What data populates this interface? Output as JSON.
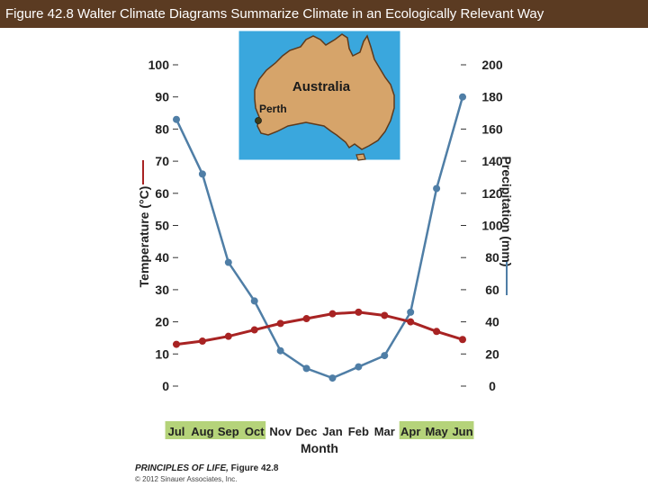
{
  "header": {
    "title": "Figure 42.8  Walter Climate Diagrams Summarize Climate in an Ecologically Relevant Way"
  },
  "map": {
    "country_label": "Australia",
    "city_label": "Perth"
  },
  "colors": {
    "title_bg": "#5b3b22",
    "precip": "#4f7ea6",
    "temp": "#a82323",
    "season_band": "#b5d37a",
    "map_water": "#3aa7dd",
    "map_land": "#d6a46a"
  },
  "chart_data": {
    "type": "line",
    "categories": [
      "Jul",
      "Aug",
      "Sep",
      "Oct",
      "Nov",
      "Dec",
      "Jan",
      "Feb",
      "Mar",
      "Apr",
      "May",
      "Jun"
    ],
    "highlighted_categories": [
      "Jul",
      "Aug",
      "Sep",
      "Oct",
      "Apr",
      "May",
      "Jun"
    ],
    "xlabel": "Month",
    "ylabel_left": "Temperature (°C)",
    "ylabel_right": "Precipitation (mm)",
    "ylim_left": [
      0,
      100
    ],
    "ylim_right": [
      0,
      200
    ],
    "yticks_left": [
      0,
      10,
      20,
      30,
      40,
      50,
      60,
      70,
      80,
      90,
      100
    ],
    "yticks_right": [
      0,
      20,
      40,
      60,
      80,
      100,
      120,
      140,
      160,
      180,
      200
    ],
    "series": [
      {
        "name": "Precipitation (mm)",
        "axis": "right",
        "values": [
          166,
          132,
          77,
          53,
          22,
          11,
          5,
          12,
          19,
          46,
          123,
          180
        ]
      },
      {
        "name": "Temperature (°C)",
        "axis": "left",
        "values": [
          13,
          14,
          15.5,
          17.5,
          19.5,
          21,
          22.5,
          23,
          22,
          20,
          17,
          14.5
        ]
      }
    ]
  },
  "credit": {
    "book": "PRINCIPLES OF LIFE,",
    "figure": " Figure 42.8",
    "copyright": "© 2012 Sinauer Associates, Inc."
  }
}
